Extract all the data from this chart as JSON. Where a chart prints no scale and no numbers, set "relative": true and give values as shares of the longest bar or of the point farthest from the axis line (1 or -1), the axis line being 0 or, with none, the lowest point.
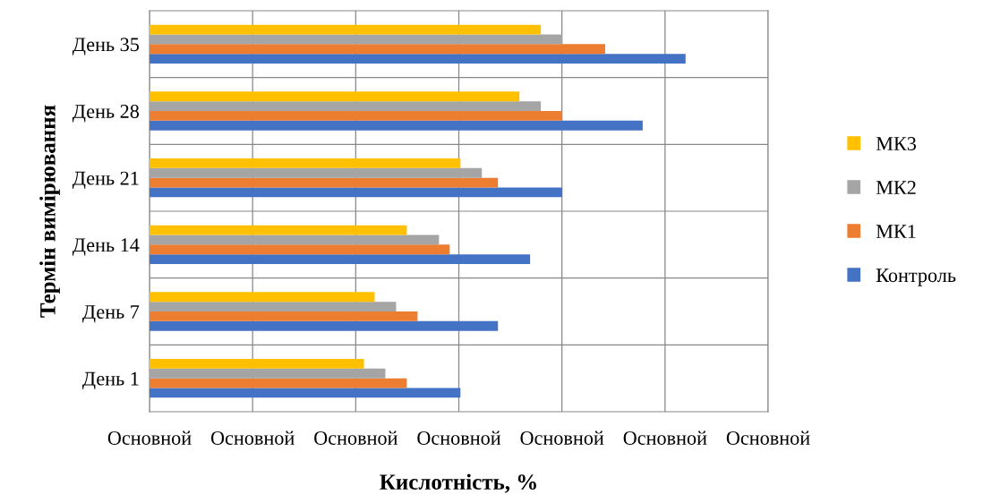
{
  "chart_data": {
    "type": "bar",
    "orientation": "horizontal",
    "relative": true,
    "xlabel": "Кислотність, %",
    "ylabel": "Термін вимірювання",
    "categories": [
      "День 35",
      "День 28",
      "День 21",
      "День 14",
      "День 7",
      "День 1"
    ],
    "series": [
      {
        "name": "Контроль",
        "color": "#4472c4",
        "values": [
          1,
          0.92,
          0.77,
          0.71,
          0.65,
          0.58
        ]
      },
      {
        "name": "МК1",
        "color": "#ed7d31",
        "values": [
          0.85,
          0.77,
          0.65,
          0.56,
          0.5,
          0.48
        ]
      },
      {
        "name": "МК2",
        "color": "#a5a5a5",
        "values": [
          0.77,
          0.73,
          0.62,
          0.54,
          0.46,
          0.44
        ]
      },
      {
        "name": "МК3",
        "color": "#ffc000",
        "values": [
          0.73,
          0.69,
          0.58,
          0.48,
          0.42,
          0.4
        ]
      }
    ],
    "annotations": [
      "Основной",
      "Основной",
      "Основной",
      "Основной",
      "Основной",
      "Основной",
      "Основной"
    ],
    "grid": true,
    "legend": "right"
  }
}
